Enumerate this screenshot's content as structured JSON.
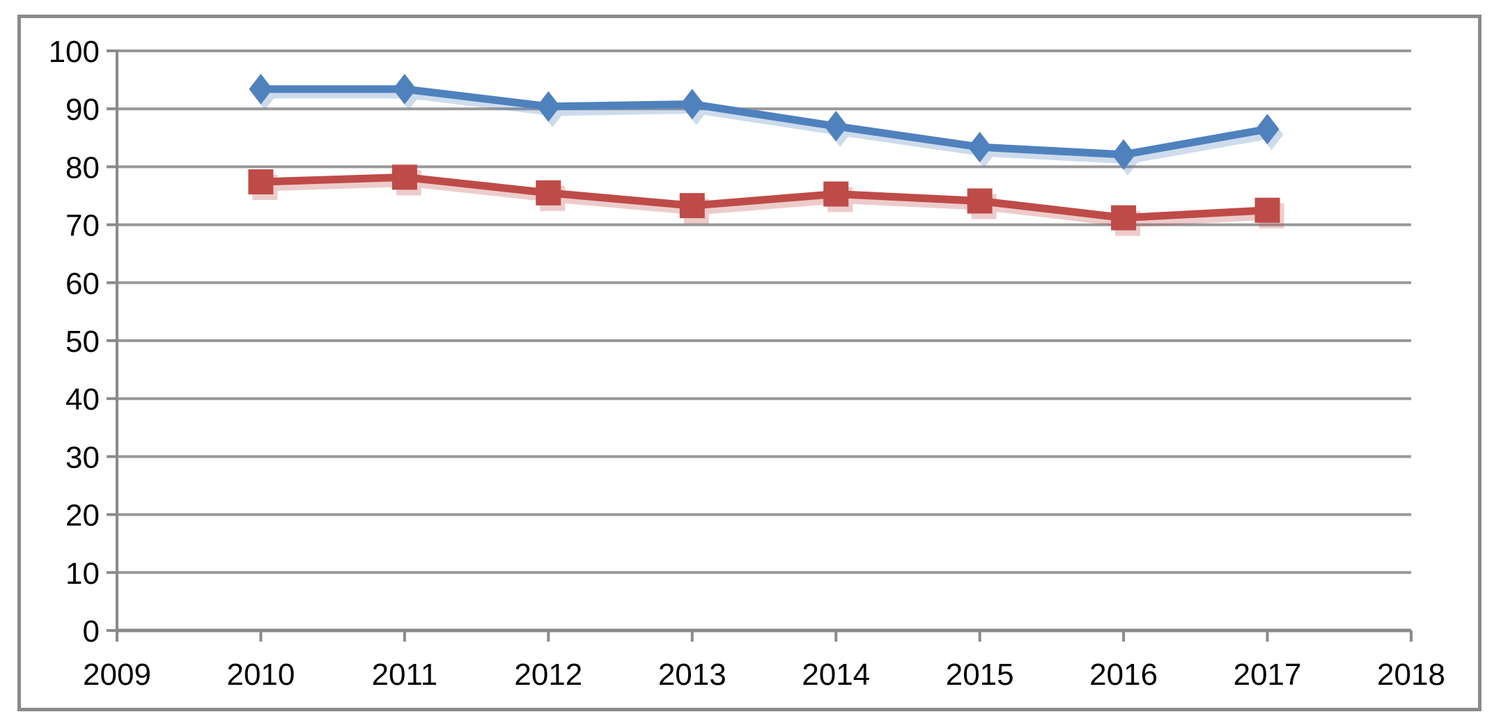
{
  "chart_data": {
    "type": "line",
    "title": "",
    "xlabel": "",
    "ylabel": "",
    "xlim": [
      2009,
      2018
    ],
    "ylim": [
      0,
      100
    ],
    "x_tick_labels": [
      "2009",
      "2010",
      "2011",
      "2012",
      "2013",
      "2014",
      "2015",
      "2016",
      "2017",
      "2018"
    ],
    "y_tick_labels": [
      "0",
      "10",
      "20",
      "30",
      "40",
      "50",
      "60",
      "70",
      "80",
      "90",
      "100"
    ],
    "grid": "horizontal",
    "legend": "none",
    "x": [
      2010,
      2011,
      2012,
      2013,
      2014,
      2015,
      2016,
      2017
    ],
    "series": [
      {
        "name": "blue-series",
        "marker": "diamond",
        "color": "#4F81BD",
        "values": [
          93.4,
          93.4,
          90.4,
          90.8,
          87.0,
          83.4,
          82.1,
          86.5
        ]
      },
      {
        "name": "red-series",
        "marker": "square",
        "color": "#BE4B48",
        "values": [
          77.4,
          78.2,
          75.5,
          73.3,
          75.3,
          74.1,
          71.2,
          72.5
        ]
      }
    ],
    "colors": {
      "gridline": "#989898",
      "axis": "#8a8a8a",
      "frame_border": "#8a8a8a",
      "tick_label": "#000000",
      "background": "#ffffff"
    }
  }
}
